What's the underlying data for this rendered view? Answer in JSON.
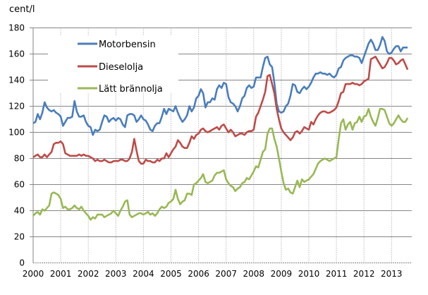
{
  "chart_data": {
    "type": "line",
    "ylabel": "cent/l",
    "ylim": [
      0,
      180
    ],
    "yticks": [
      "0",
      "20",
      "40",
      "60",
      "80",
      "100",
      "120",
      "140",
      "160",
      "180"
    ],
    "xticks": [
      "2000",
      "2001",
      "2002",
      "2003",
      "2004",
      "2005",
      "2006",
      "2007",
      "2008",
      "2009",
      "2010",
      "2011",
      "2012",
      "2013"
    ],
    "x_start": "2000-01",
    "x_end": "2013-08",
    "frequency": "monthly",
    "grid": {
      "horizontal": "solid",
      "vertical": "dotted"
    },
    "legend_position": "top-left",
    "series": [
      {
        "name": "Motorbensin",
        "color": "#4a7ebb",
        "values": [
          107,
          108,
          114,
          110,
          115,
          123,
          119,
          117,
          116,
          117,
          115,
          114,
          112,
          105,
          108,
          111,
          111,
          112,
          124,
          116,
          112,
          112,
          113,
          108,
          105,
          104,
          98,
          102,
          101,
          102,
          108,
          113,
          112,
          108,
          110,
          111,
          109,
          111,
          110,
          106,
          104,
          113,
          114,
          114,
          113,
          108,
          110,
          113,
          110,
          109,
          106,
          102,
          101,
          105,
          107,
          107,
          112,
          118,
          114,
          118,
          117,
          116,
          120,
          115,
          111,
          108,
          110,
          113,
          120,
          116,
          119,
          126,
          128,
          133,
          130,
          119,
          123,
          123,
          126,
          125,
          133,
          136,
          134,
          138,
          137,
          127,
          123,
          122,
          120,
          116,
          120,
          126,
          128,
          134,
          136,
          134,
          135,
          142,
          142,
          142,
          150,
          157,
          158,
          152,
          150,
          138,
          122,
          116,
          115,
          116,
          120,
          122,
          128,
          137,
          136,
          131,
          130,
          133,
          135,
          133,
          135,
          138,
          142,
          145,
          145,
          146,
          145,
          145,
          144,
          145,
          143,
          142,
          144,
          149,
          150,
          155,
          157,
          158,
          159,
          159,
          158,
          158,
          157,
          153,
          158,
          163,
          168,
          171,
          168,
          163,
          163,
          167,
          173,
          170,
          162,
          160,
          161,
          164,
          166,
          166,
          162,
          165,
          165,
          165
        ]
      },
      {
        "name": "Dieselolja",
        "color": "#be4b48",
        "values": [
          81,
          82,
          83,
          81,
          81,
          83,
          81,
          83,
          85,
          91,
          92,
          92,
          93,
          91,
          84,
          83,
          82,
          82,
          82,
          82,
          83,
          82,
          83,
          82,
          82,
          81,
          80,
          78,
          79,
          78,
          78,
          79,
          78,
          77,
          77,
          78,
          78,
          78,
          79,
          79,
          78,
          78,
          80,
          85,
          95,
          86,
          78,
          76,
          76,
          79,
          78,
          78,
          77,
          77,
          79,
          78,
          80,
          80,
          84,
          81,
          84,
          87,
          89,
          94,
          92,
          89,
          88,
          88,
          92,
          97,
          95,
          98,
          99,
          102,
          103,
          101,
          100,
          101,
          102,
          103,
          104,
          102,
          105,
          106,
          103,
          100,
          102,
          100,
          97,
          98,
          99,
          99,
          98,
          100,
          101,
          101,
          102,
          112,
          115,
          120,
          125,
          131,
          143,
          144,
          137,
          130,
          118,
          110,
          103,
          100,
          98,
          96,
          94,
          96,
          100,
          101,
          99,
          101,
          104,
          103,
          102,
          108,
          106,
          110,
          113,
          115,
          116,
          116,
          115,
          115,
          116,
          117,
          119,
          124,
          130,
          131,
          137,
          137,
          137,
          138,
          137,
          137,
          136,
          137,
          139,
          140,
          141,
          156,
          157,
          158,
          155,
          152,
          149,
          150,
          153,
          157,
          157,
          155,
          152,
          153,
          155,
          156,
          152,
          148
        ]
      },
      {
        "name": "Lätt brännolja",
        "color": "#98b954",
        "values": [
          36,
          38,
          39,
          37,
          41,
          40,
          42,
          44,
          53,
          54,
          53,
          52,
          49,
          42,
          43,
          41,
          41,
          42,
          44,
          42,
          41,
          43,
          40,
          38,
          36,
          33,
          35,
          34,
          37,
          37,
          37,
          35,
          36,
          37,
          38,
          40,
          38,
          36,
          40,
          43,
          47,
          48,
          37,
          35,
          36,
          37,
          38,
          38,
          37,
          38,
          39,
          37,
          38,
          36,
          38,
          41,
          43,
          42,
          43,
          46,
          47,
          49,
          56,
          49,
          45,
          47,
          48,
          53,
          53,
          52,
          60,
          61,
          63,
          65,
          68,
          62,
          61,
          62,
          63,
          67,
          69,
          69,
          70,
          71,
          64,
          61,
          59,
          58,
          55,
          57,
          58,
          61,
          62,
          65,
          64,
          67,
          70,
          74,
          73,
          79,
          85,
          87,
          99,
          103,
          103,
          95,
          89,
          80,
          70,
          61,
          56,
          57,
          54,
          53,
          58,
          63,
          58,
          64,
          62,
          63,
          64,
          66,
          68,
          72,
          76,
          78,
          79,
          80,
          79,
          78,
          79,
          80,
          81,
          95,
          107,
          110,
          102,
          106,
          108,
          102,
          107,
          108,
          112,
          108,
          112,
          113,
          118,
          112,
          108,
          105,
          111,
          118,
          118,
          117,
          112,
          107,
          105,
          107,
          110,
          113,
          110,
          108,
          108,
          111
        ]
      }
    ]
  }
}
